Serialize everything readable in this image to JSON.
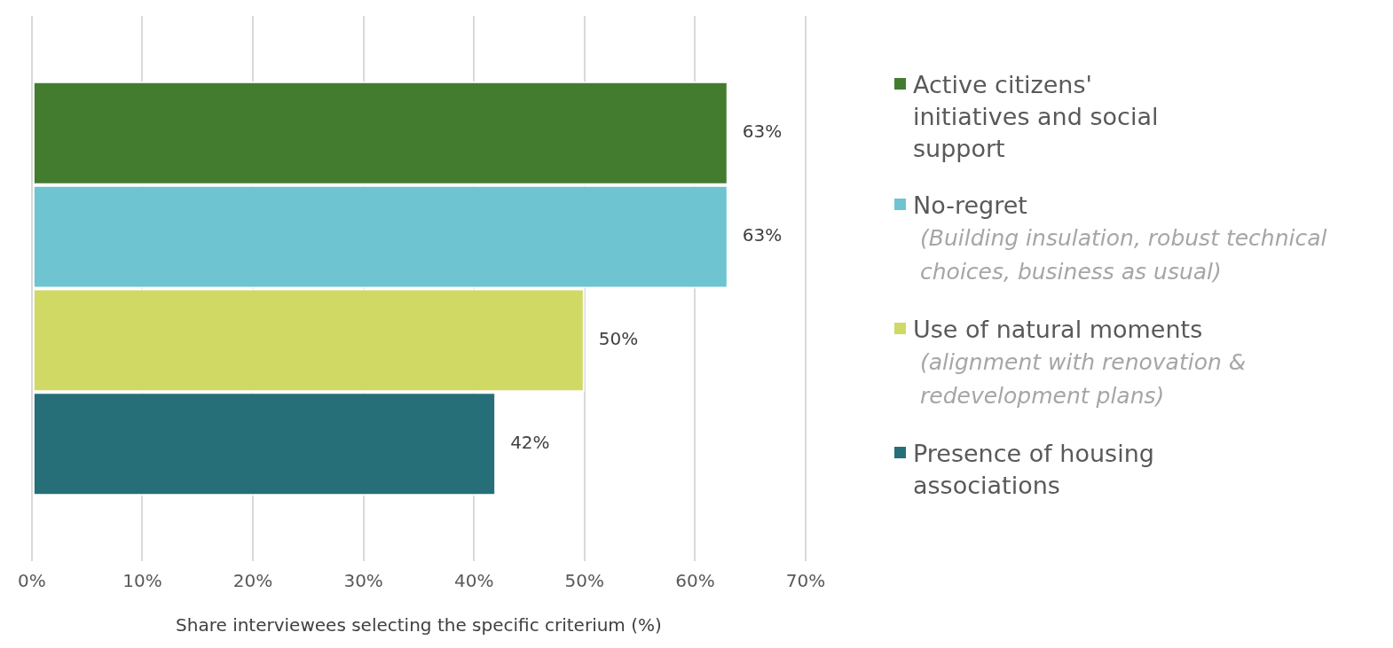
{
  "chart_data": {
    "type": "bar",
    "orientation": "horizontal",
    "categories": [
      null
    ],
    "series": [
      {
        "name": "Active citizens' initiatives and social support",
        "color": "#437c2f",
        "values": [
          63
        ],
        "value_labels": [
          "63%"
        ]
      },
      {
        "name": "No-regret (Building insulation, robust technical choices, business as usual)",
        "color": "#6ec4d1",
        "values": [
          63
        ],
        "value_labels": [
          "63%"
        ]
      },
      {
        "name": "Use of natural moments (alignment with renovation & redevelopment plans)",
        "color": "#d0d964",
        "values": [
          50
        ],
        "value_labels": [
          "50%"
        ]
      },
      {
        "name": "Presence of housing associations",
        "color": "#266f78",
        "values": [
          42
        ],
        "value_labels": [
          "42%"
        ]
      }
    ],
    "xlim": [
      0,
      70
    ],
    "xticks": [
      {
        "value": 0,
        "label": "0%"
      },
      {
        "value": 10,
        "label": "10%"
      },
      {
        "value": 20,
        "label": "20%"
      },
      {
        "value": 30,
        "label": "30%"
      },
      {
        "value": 40,
        "label": "40%"
      },
      {
        "value": 50,
        "label": "50%"
      },
      {
        "value": 60,
        "label": "60%"
      },
      {
        "value": 70,
        "label": "70%"
      }
    ],
    "xlabel": "Share interviewees selecting the specific criterium (%)",
    "grid": "x",
    "legend": "right"
  }
}
